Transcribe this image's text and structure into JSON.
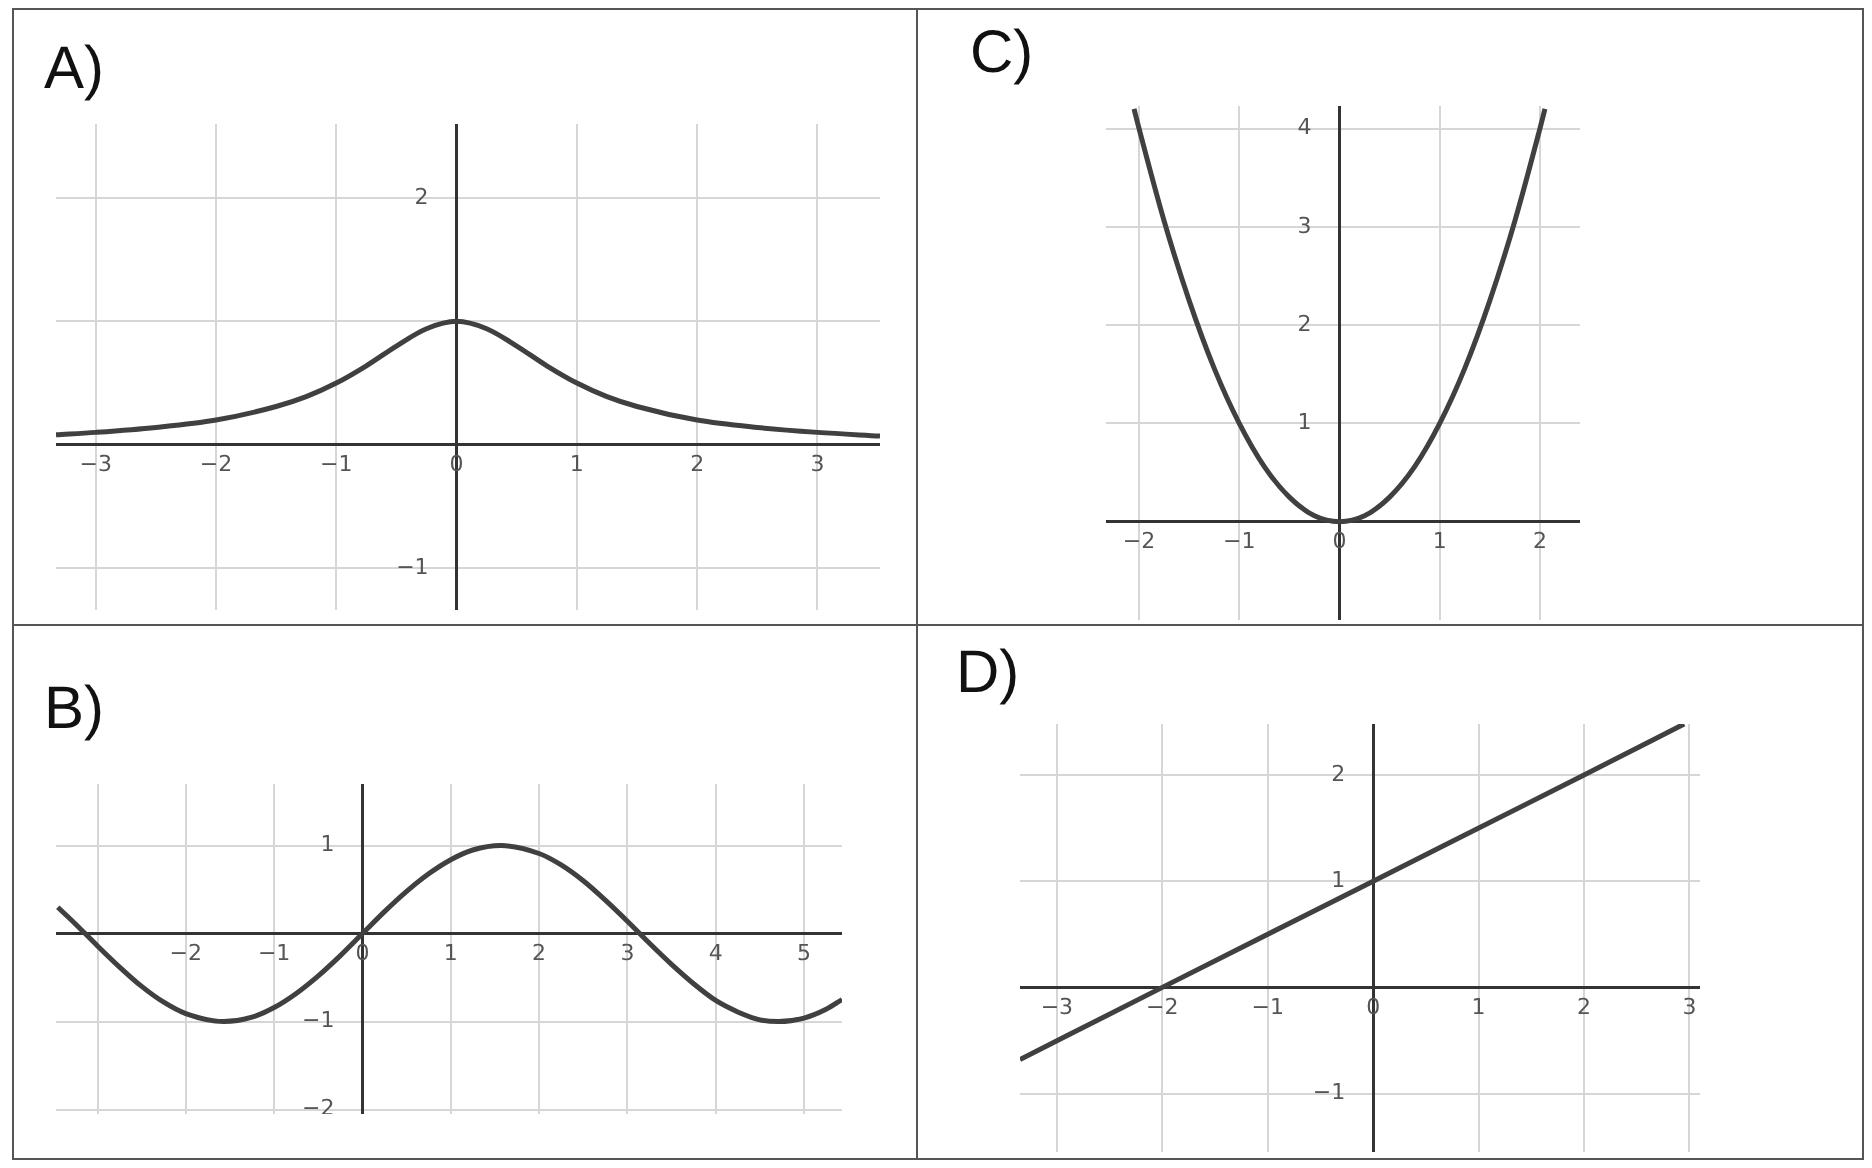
{
  "chart_data": [
    {
      "type": "line",
      "title": "A)",
      "color": "#404040",
      "grid": true,
      "xlim": [
        -3.33,
        3.52
      ],
      "ylim": [
        -1.34,
        2.6
      ],
      "xticks": [
        -3,
        -2,
        -1,
        0,
        1,
        2,
        3
      ],
      "yticks": [
        -1,
        {
          "value": 1,
          "label": null
        },
        2
      ],
      "x": [
        -3.33,
        -3,
        -2.5,
        -2,
        -1.5,
        -1.25,
        -1,
        -0.75,
        -0.5,
        -0.25,
        0,
        0.25,
        0.5,
        0.75,
        1,
        1.25,
        1.5,
        2,
        2.5,
        3,
        3.52
      ],
      "values": [
        0.08,
        0.1,
        0.14,
        0.2,
        0.31,
        0.39,
        0.5,
        0.64,
        0.8,
        0.94,
        1,
        0.94,
        0.8,
        0.64,
        0.5,
        0.39,
        0.31,
        0.2,
        0.14,
        0.1,
        0.07
      ]
    },
    {
      "type": "line",
      "title": "C)",
      "color": "#404040",
      "grid": true,
      "xlim": [
        -2.33,
        2.4
      ],
      "ylim": [
        -1,
        4.23
      ],
      "xticks": [
        -2,
        -1,
        0,
        1,
        2
      ],
      "yticks": [
        1,
        2,
        3,
        4
      ],
      "x": [
        -2.05,
        -2,
        -1.75,
        -1.5,
        -1.25,
        -1,
        -0.75,
        -0.5,
        -0.25,
        0,
        0.25,
        0.5,
        0.75,
        1,
        1.25,
        1.5,
        1.75,
        2,
        2.05
      ],
      "values": [
        4.2,
        4,
        3.06,
        2.25,
        1.56,
        1,
        0.56,
        0.25,
        0.06,
        0,
        0.06,
        0.25,
        0.56,
        1,
        1.56,
        2.25,
        3.06,
        4,
        4.2
      ]
    },
    {
      "type": "line",
      "title": "B)",
      "color": "#404040",
      "grid": true,
      "xlim": [
        -3.47,
        5.43
      ],
      "ylim": [
        -2.05,
        1.7
      ],
      "xticks": [
        {
          "value": -3,
          "label": null
        },
        -2,
        -1,
        0,
        1,
        2,
        3,
        4,
        5
      ],
      "yticks": [
        -2,
        -1,
        1
      ],
      "x": [
        -3.45,
        -3.25,
        -3,
        -2.75,
        -2.5,
        -2.25,
        -2,
        -1.57,
        -1.25,
        -1,
        -0.75,
        -0.5,
        -0.25,
        0,
        0.25,
        0.5,
        0.75,
        1,
        1.25,
        1.57,
        2,
        2.25,
        2.5,
        2.75,
        3,
        3.25,
        3.5,
        3.75,
        4,
        4.25,
        4.5,
        4.71,
        5,
        5.25,
        5.43
      ],
      "values": [
        0.3,
        0.11,
        -0.14,
        -0.38,
        -0.6,
        -0.78,
        -0.91,
        -1,
        -0.95,
        -0.84,
        -0.68,
        -0.48,
        -0.25,
        0,
        0.25,
        0.48,
        0.68,
        0.84,
        0.95,
        1,
        0.91,
        0.78,
        0.6,
        0.38,
        0.14,
        -0.11,
        -0.35,
        -0.57,
        -0.76,
        -0.89,
        -0.98,
        -1,
        -0.96,
        -0.86,
        -0.75
      ]
    },
    {
      "type": "line",
      "title": "D)",
      "color": "#404040",
      "grid": true,
      "xlim": [
        -3.35,
        3.1
      ],
      "ylim": [
        -1.55,
        2.48
      ],
      "xticks": [
        -3,
        -2,
        -1,
        0,
        1,
        2,
        3
      ],
      "yticks": [
        -1,
        1,
        2
      ],
      "x": [
        -3.35,
        -2,
        0,
        2,
        2.95
      ],
      "values": [
        -0.68,
        0,
        1,
        2,
        2.48
      ]
    }
  ]
}
